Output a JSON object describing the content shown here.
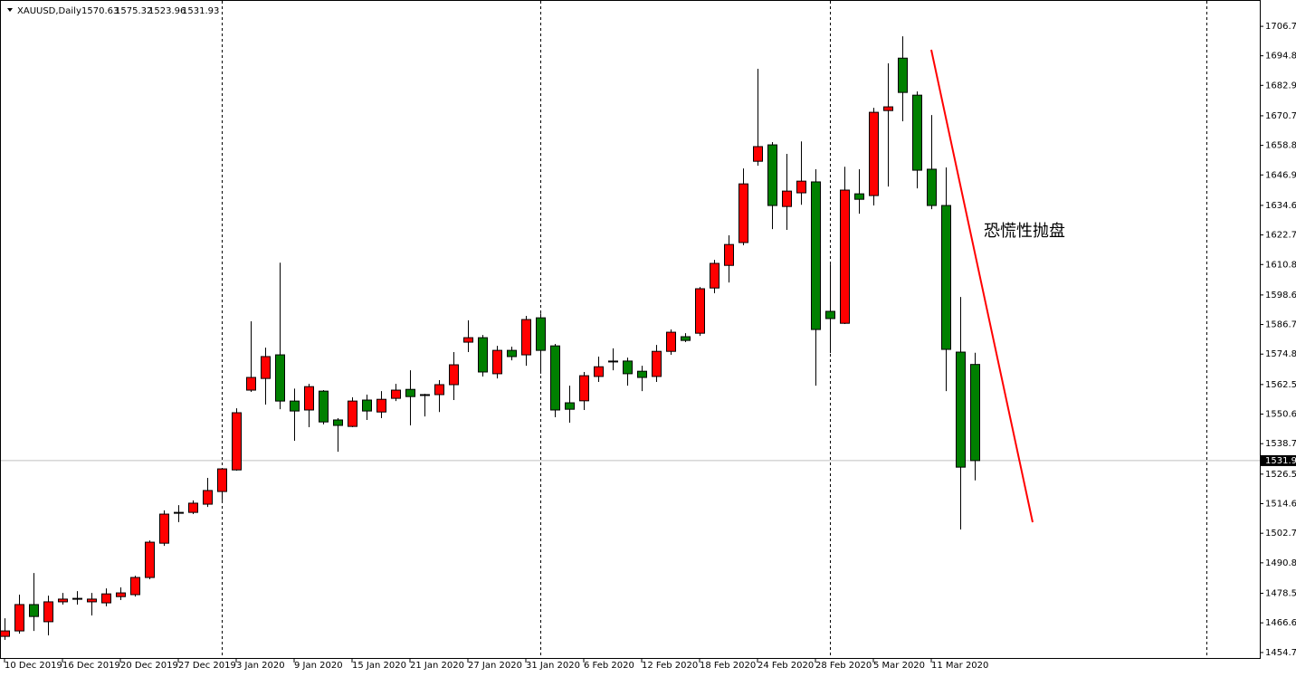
{
  "chart_data": {
    "type": "candlestick",
    "title": "XAUUSD,Daily",
    "annotation": "恐慌性抛盘",
    "categories": [
      "10 Dec 2019",
      null,
      null,
      null,
      "16 Dec 2019",
      null,
      null,
      null,
      "20 Dec 2019",
      null,
      null,
      null,
      "27 Dec 2019",
      null,
      null,
      null,
      "3 Jan 2020",
      null,
      null,
      null,
      "9 Jan 2020",
      null,
      null,
      null,
      "15 Jan 2020",
      null,
      null,
      null,
      "21 Jan 2020",
      null,
      null,
      null,
      "27 Jan 2020",
      null,
      null,
      null,
      "31 Jan 2020",
      null,
      null,
      null,
      "6 Feb 2020",
      null,
      null,
      null,
      "12 Feb 2020",
      null,
      null,
      null,
      "18 Feb 2020",
      null,
      null,
      null,
      "24 Feb 2020",
      null,
      null,
      null,
      "28 Feb 2020",
      null,
      null,
      null,
      "5 Mar 2020",
      null,
      null,
      null,
      "11 Mar 2020",
      null,
      null,
      null
    ],
    "open": [
      1461.2,
      1463.4,
      1474.0,
      1467.1,
      1475.1,
      1476.2,
      1475.1,
      1474.7,
      1477.2,
      1478.0,
      1484.9,
      1498.7,
      1510.8,
      1511.1,
      1514.4,
      1519.5,
      1528.2,
      1560.3,
      1565.0,
      1574.5,
      1555.9,
      1552.3,
      1559.9,
      1548.3,
      1545.7,
      1556.3,
      1551.5,
      1557.0,
      1560.6,
      1558.5,
      1558.5,
      1562.5,
      1579.6,
      1581.4,
      1566.9,
      1576.3,
      1574.5,
      1589.4,
      1578.1,
      1555.2,
      1556.0,
      1565.8,
      1571.9,
      1572.0,
      1567.9,
      1565.8,
      1575.9,
      1581.8,
      1583.2,
      1601.4,
      1610.5,
      1619.7,
      1652.4,
      1659.0,
      1634.2,
      1639.7,
      1644.1,
      1592.0,
      1587.2,
      1639.3,
      1638.6,
      1672.8,
      1693.9,
      1679.0,
      1649.2,
      1634.6,
      1575.6,
      1570.63
    ],
    "high": [
      1468.5,
      1478.0,
      1486.7,
      1477.6,
      1478.7,
      1479.4,
      1478.7,
      1480.5,
      1480.9,
      1485.6,
      1499.8,
      1511.9,
      1514.0,
      1515.9,
      1525.0,
      1529.0,
      1553.0,
      1588.0,
      1577.4,
      1611.6,
      1560.9,
      1562.8,
      1560.3,
      1549.0,
      1557.4,
      1558.5,
      1559.9,
      1562.8,
      1568.3,
      1558.8,
      1564.3,
      1575.6,
      1588.4,
      1582.5,
      1578.1,
      1577.8,
      1590.2,
      1591.2,
      1578.9,
      1562.1,
      1567.6,
      1573.8,
      1577.1,
      1573.4,
      1570.1,
      1578.5,
      1584.7,
      1583.2,
      1601.8,
      1612.7,
      1622.6,
      1649.5,
      1689.6,
      1660.1,
      1655.4,
      1660.4,
      1649.2,
      1610.9,
      1650.2,
      1649.2,
      1673.9,
      1691.8,
      1702.7,
      1680.5,
      1671.0,
      1649.9,
      1597.8,
      1575.32
    ],
    "low": [
      1459.8,
      1462.3,
      1463.4,
      1461.6,
      1474.0,
      1474.0,
      1469.6,
      1473.3,
      1475.8,
      1477.2,
      1484.2,
      1497.6,
      1507.2,
      1510.4,
      1513.3,
      1515.9,
      1527.9,
      1559.6,
      1554.5,
      1552.6,
      1539.9,
      1545.4,
      1546.5,
      1535.5,
      1545.4,
      1548.3,
      1549.0,
      1555.9,
      1546.1,
      1549.7,
      1551.5,
      1556.3,
      1575.6,
      1565.8,
      1565.0,
      1572.3,
      1570.1,
      1566.9,
      1549.4,
      1547.2,
      1552.3,
      1563.6,
      1568.3,
      1562.1,
      1559.9,
      1563.6,
      1574.5,
      1579.6,
      1582.1,
      1599.3,
      1603.6,
      1618.6,
      1650.6,
      1625.1,
      1624.8,
      1634.9,
      1562.1,
      1575.2,
      1586.9,
      1631.3,
      1634.6,
      1642.2,
      1668.5,
      1641.5,
      1633.1,
      1559.9,
      1504.2,
      1523.96
    ],
    "close": [
      1463.4,
      1474.0,
      1469.2,
      1475.1,
      1476.2,
      1476.5,
      1476.2,
      1478.3,
      1478.7,
      1484.9,
      1499.1,
      1510.4,
      1511.1,
      1514.8,
      1519.9,
      1528.6,
      1551.2,
      1565.4,
      1573.8,
      1555.9,
      1551.9,
      1561.7,
      1547.5,
      1546.1,
      1555.9,
      1551.9,
      1556.6,
      1560.3,
      1557.7,
      1558.4,
      1562.5,
      1570.5,
      1581.4,
      1567.6,
      1576.3,
      1573.8,
      1588.7,
      1576.3,
      1552.3,
      1552.6,
      1566.1,
      1569.7,
      1572.0,
      1566.9,
      1565.4,
      1575.9,
      1583.6,
      1580.3,
      1601.1,
      1611.3,
      1618.9,
      1643.3,
      1658.3,
      1634.6,
      1640.4,
      1644.4,
      1584.7,
      1589.1,
      1640.8,
      1637.1,
      1672.1,
      1674.3,
      1680.1,
      1648.8,
      1634.6,
      1576.7,
      1529.3,
      1531.93
    ],
    "up_color": "#ff0000",
    "down_color": "#008000",
    "line_color": "#ff0000",
    "ylim": [
      1452.5,
      1717.3
    ],
    "yticks": [
      {
        "value": 1706.7,
        "label": "1706.70"
      },
      {
        "value": 1694.85,
        "label": "1694.85"
      },
      {
        "value": 1682.95,
        "label": "1682.95"
      },
      {
        "value": 1670.7,
        "label": "1670.70"
      },
      {
        "value": 1658.8,
        "label": "1658.80"
      },
      {
        "value": 1646.9,
        "label": "1646.90"
      },
      {
        "value": 1634.65,
        "label": "1634.65"
      },
      {
        "value": 1622.75,
        "label": "1622.75"
      },
      {
        "value": 1610.85,
        "label": "1610.85"
      },
      {
        "value": 1598.6,
        "label": "1598.60"
      },
      {
        "value": 1586.7,
        "label": "1586.70"
      },
      {
        "value": 1574.8,
        "label": "1574.80"
      },
      {
        "value": 1562.55,
        "label": "1562.55"
      },
      {
        "value": 1550.65,
        "label": "1550.65"
      },
      {
        "value": 1538.75,
        "label": "1538.75"
      },
      {
        "value": 1526.5,
        "label": "1526.50"
      },
      {
        "value": 1514.6,
        "label": "1514.60"
      },
      {
        "value": 1502.7,
        "label": "1502.70"
      },
      {
        "value": 1490.8,
        "label": "1490.80"
      },
      {
        "value": 1478.55,
        "label": "1478.55"
      },
      {
        "value": 1466.65,
        "label": "1466.65"
      },
      {
        "value": 1454.7,
        "label": "1454.70"
      }
    ]
  }
}
